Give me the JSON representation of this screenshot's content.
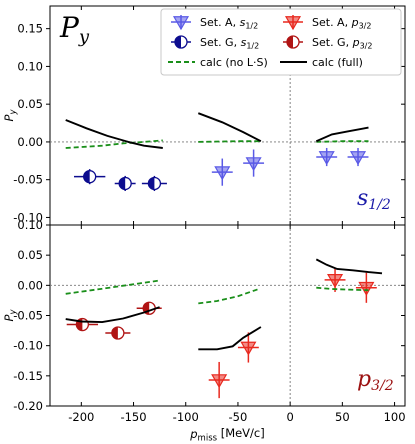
{
  "chart_data": {
    "type": "scatter",
    "title_symbol": "P",
    "title_sub": "y",
    "xlabel": "p",
    "xlabel_sub": "miss",
    "xlabel_unit": " [MeV/c]",
    "ylabel": "P",
    "ylabel_sub": "y",
    "xlim": [
      -230,
      110
    ],
    "xticks": [
      "-200",
      "-150",
      "-100",
      "-50",
      "0",
      "50",
      "100"
    ],
    "xtick_values": [
      -200,
      -150,
      -100,
      -50,
      0,
      50,
      100
    ],
    "legend": [
      {
        "text": "Set. A, ",
        "sub_main": "s",
        "sub": "1/2",
        "color": "#5a5ae6",
        "marker": "tri-down"
      },
      {
        "text": "Set. A, ",
        "sub_main": "p",
        "sub": "3/2",
        "color": "#e8291f",
        "marker": "tri-down"
      },
      {
        "text": "Set. G, ",
        "sub_main": "s",
        "sub": "1/2",
        "color": "#0d0d8f",
        "marker": "half-circle"
      },
      {
        "text": "Set. G, ",
        "sub_main": "p",
        "sub": "3/2",
        "color": "#b01414",
        "marker": "half-circle"
      },
      {
        "text": "calc (no L·S)",
        "color": "#1a8f1a",
        "marker": "dashed"
      },
      {
        "text": "calc (full)",
        "color": "#000000",
        "marker": "solid"
      }
    ],
    "panels": [
      {
        "name": "s1/2",
        "label_main": "s",
        "label_sub": "1/2",
        "label_color": "#1a1aa8",
        "ylim": [
          -0.11,
          0.18
        ],
        "yticks": [
          "0.15",
          "0.10",
          "0.05",
          "0.00",
          "-0.05",
          "-0.10"
        ],
        "ytick_values": [
          0.15,
          0.1,
          0.05,
          0.0,
          -0.05,
          -0.1
        ],
        "series": [
          {
            "name": "Set. A, s1/2",
            "color": "#5a5ae6",
            "marker": "tri-down",
            "points": [
              {
                "x": -65,
                "y": -0.04,
                "xerr": 10,
                "yerr": 0.018
              },
              {
                "x": -35,
                "y": -0.028,
                "xerr": 10,
                "yerr": 0.018
              },
              {
                "x": 35,
                "y": -0.02,
                "xerr": 10,
                "yerr": 0.012
              },
              {
                "x": 65,
                "y": -0.02,
                "xerr": 10,
                "yerr": 0.012
              }
            ]
          },
          {
            "name": "Set. G, s1/2",
            "color": "#0d0d8f",
            "marker": "half-circle",
            "points": [
              {
                "x": -192,
                "y": -0.046,
                "xerr": 15,
                "yerr": 0.01
              },
              {
                "x": -158,
                "y": -0.055,
                "xerr": 10,
                "yerr": 0.01
              },
              {
                "x": -130,
                "y": -0.055,
                "xerr": 12,
                "yerr": 0.01
              }
            ]
          },
          {
            "name": "calc (no L·S)",
            "color": "#1a8f1a",
            "style": "dashed",
            "segments": [
              [
                [
                  -215,
                  -0.008
                ],
                [
                  -180,
                  -0.005
                ],
                [
                  -160,
                  -0.002
                ],
                [
                  -140,
                  0.0
                ],
                [
                  -122,
                  0.002
                ]
              ],
              [
                [
                  -88,
                  0.0
                ],
                [
                  -50,
                  0.001
                ],
                [
                  -28,
                  0.001
                ]
              ],
              [
                [
                  25,
                  0.0
                ],
                [
                  50,
                  0.001
                ],
                [
                  75,
                  0.001
                ]
              ]
            ]
          },
          {
            "name": "calc (full)",
            "color": "#000000",
            "style": "solid",
            "segments": [
              [
                [
                  -215,
                  0.029
                ],
                [
                  -195,
                  0.018
                ],
                [
                  -175,
                  0.008
                ],
                [
                  -155,
                  0.0
                ],
                [
                  -140,
                  -0.005
                ],
                [
                  -122,
                  -0.008
                ]
              ],
              [
                [
                  -88,
                  0.038
                ],
                [
                  -65,
                  0.026
                ],
                [
                  -45,
                  0.013
                ],
                [
                  -28,
                  0.001
                ]
              ],
              [
                [
                  25,
                  0.001
                ],
                [
                  40,
                  0.01
                ],
                [
                  55,
                  0.014
                ],
                [
                  75,
                  0.019
                ]
              ]
            ]
          }
        ]
      },
      {
        "name": "p3/2",
        "label_main": "p",
        "label_sub": "3/2",
        "label_color": "#9b1010",
        "ylim": [
          -0.2,
          0.1
        ],
        "yticks": [
          "0.10",
          "0.05",
          "0.00",
          "-0.05",
          "-0.10",
          "-0.15",
          "-0.20"
        ],
        "ytick_values": [
          0.1,
          0.05,
          0.0,
          -0.05,
          -0.1,
          -0.15,
          -0.2
        ],
        "series": [
          {
            "name": "Set. A, p3/2",
            "color": "#e8291f",
            "marker": "tri-down",
            "points": [
              {
                "x": -68,
                "y": -0.157,
                "xerr": 10,
                "yerr": 0.03
              },
              {
                "x": -40,
                "y": -0.103,
                "xerr": 10,
                "yerr": 0.025
              },
              {
                "x": 43,
                "y": 0.009,
                "xerr": 10,
                "yerr": 0.02
              },
              {
                "x": 73,
                "y": -0.004,
                "xerr": 10,
                "yerr": 0.025
              }
            ]
          },
          {
            "name": "Set. G, p3/2",
            "color": "#b01414",
            "marker": "half-circle",
            "points": [
              {
                "x": -199,
                "y": -0.065,
                "xerr": 15,
                "yerr": 0.01
              },
              {
                "x": -165,
                "y": -0.079,
                "xerr": 12,
                "yerr": 0.01
              },
              {
                "x": -135,
                "y": -0.038,
                "xerr": 12,
                "yerr": 0.01
              }
            ]
          },
          {
            "name": "calc (no L·S)",
            "color": "#1a8f1a",
            "style": "dashed",
            "segments": [
              [
                [
                  -215,
                  -0.014
                ],
                [
                  -190,
                  -0.008
                ],
                [
                  -165,
                  -0.002
                ],
                [
                  -145,
                  0.003
                ],
                [
                  -125,
                  0.008
                ]
              ],
              [
                [
                  -88,
                  -0.03
                ],
                [
                  -70,
                  -0.026
                ],
                [
                  -50,
                  -0.018
                ],
                [
                  -30,
                  -0.006
                ]
              ],
              [
                [
                  25,
                  -0.004
                ],
                [
                  40,
                  -0.006
                ],
                [
                  55,
                  -0.007
                ],
                [
                  75,
                  -0.008
                ]
              ]
            ]
          },
          {
            "name": "calc (full)",
            "color": "#000000",
            "style": "solid",
            "segments": [
              [
                [
                  -215,
                  -0.056
                ],
                [
                  -200,
                  -0.06
                ],
                [
                  -180,
                  -0.061
                ],
                [
                  -160,
                  -0.055
                ],
                [
                  -140,
                  -0.045
                ],
                [
                  -125,
                  -0.036
                ]
              ],
              [
                [
                  -88,
                  -0.106
                ],
                [
                  -70,
                  -0.106
                ],
                [
                  -55,
                  -0.101
                ],
                [
                  -45,
                  -0.087
                ],
                [
                  -28,
                  -0.069
                ]
              ],
              [
                [
                  25,
                  0.043
                ],
                [
                  35,
                  0.034
                ],
                [
                  45,
                  0.027
                ],
                [
                  60,
                  0.025
                ],
                [
                  75,
                  0.022
                ],
                [
                  88,
                  0.02
                ]
              ]
            ]
          }
        ]
      }
    ]
  }
}
